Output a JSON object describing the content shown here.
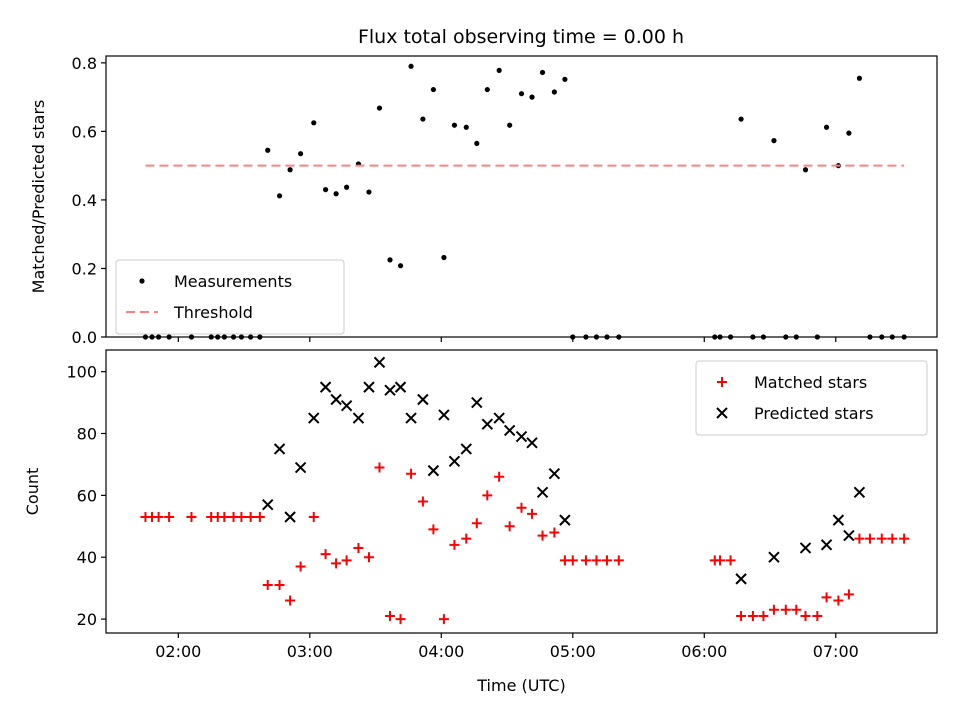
{
  "title": "Flux total observing time = 0.00 h",
  "chart_data": [
    {
      "type": "scatter",
      "panel": "top",
      "ylabel": "Matched/Predicted stars",
      "ylim": [
        0,
        0.82
      ],
      "yticks": [
        0.0,
        0.2,
        0.4,
        0.6,
        0.8
      ],
      "ytick_labels": [
        "0.0",
        "0.2",
        "0.4",
        "0.6",
        "0.8"
      ],
      "xlim": [
        1.45,
        7.77
      ],
      "xticks": [
        2,
        3,
        4,
        5,
        6,
        7
      ],
      "grid": false,
      "legend": {
        "position": "bottom-left",
        "entries": [
          "Measurements",
          "Threshold"
        ]
      },
      "series": [
        {
          "name": "Measurements",
          "marker": "dot",
          "color": "#000000",
          "x": [
            1.75,
            1.8,
            1.85,
            1.93,
            2.1,
            2.25,
            2.3,
            2.35,
            2.42,
            2.48,
            2.55,
            2.62,
            2.68,
            2.77,
            2.85,
            2.93,
            3.03,
            3.12,
            3.2,
            3.28,
            3.37,
            3.45,
            3.53,
            3.61,
            3.69,
            3.77,
            3.86,
            3.94,
            4.02,
            4.1,
            4.19,
            4.27,
            4.35,
            4.44,
            4.52,
            4.61,
            4.69,
            4.77,
            4.86,
            4.94,
            5.0,
            5.1,
            5.18,
            5.26,
            5.35,
            6.08,
            6.12,
            6.2,
            6.28,
            6.37,
            6.45,
            6.53,
            6.62,
            6.7,
            6.77,
            6.86,
            6.93,
            7.02,
            7.1,
            7.18,
            7.26,
            7.35,
            7.43,
            7.52
          ],
          "y": [
            0,
            0,
            0,
            0,
            0,
            0,
            0,
            0,
            0,
            0,
            0,
            0,
            0.545,
            0.412,
            0.488,
            0.535,
            0.625,
            0.43,
            0.418,
            0.437,
            0.505,
            0.423,
            0.668,
            0.225,
            0.208,
            0.79,
            0.636,
            0.722,
            0.232,
            0.618,
            0.612,
            0.565,
            0.722,
            0.778,
            0.618,
            0.71,
            0.7,
            0.772,
            0.715,
            0.752,
            0,
            0,
            0,
            0,
            0,
            0,
            0,
            0,
            0.636,
            0,
            0,
            0.573,
            0,
            0,
            0.488,
            0,
            0.612,
            0.5,
            0.595,
            0.755,
            0,
            0,
            0,
            0
          ]
        },
        {
          "name": "Threshold",
          "line": "dashed",
          "color": "#ff8080",
          "x": [
            1.75,
            7.52
          ],
          "y": [
            0.5,
            0.5
          ]
        }
      ]
    },
    {
      "type": "scatter",
      "panel": "bottom",
      "xlabel": "Time (UTC)",
      "ylabel": "Count",
      "ylim": [
        15.5,
        107
      ],
      "yticks": [
        20,
        40,
        60,
        80,
        100
      ],
      "ytick_labels": [
        "20",
        "40",
        "60",
        "80",
        "100"
      ],
      "xlim": [
        1.45,
        7.77
      ],
      "xticks": [
        2,
        3,
        4,
        5,
        6,
        7
      ],
      "xtick_labels": [
        "02:00",
        "03:00",
        "04:00",
        "05:00",
        "06:00",
        "07:00"
      ],
      "grid": false,
      "legend": {
        "position": "top-right",
        "entries": [
          "Matched stars",
          "Predicted stars"
        ]
      },
      "series": [
        {
          "name": "Matched stars",
          "marker": "plus",
          "color": "#ff0000",
          "x": [
            1.75,
            1.8,
            1.85,
            1.93,
            2.1,
            2.25,
            2.3,
            2.35,
            2.42,
            2.48,
            2.55,
            2.62,
            2.68,
            2.77,
            2.85,
            2.93,
            3.03,
            3.12,
            3.2,
            3.28,
            3.37,
            3.45,
            3.53,
            3.61,
            3.69,
            3.77,
            3.86,
            3.94,
            4.02,
            4.1,
            4.19,
            4.27,
            4.35,
            4.44,
            4.52,
            4.61,
            4.69,
            4.77,
            4.86,
            4.94,
            5.0,
            5.1,
            5.18,
            5.26,
            5.35,
            6.08,
            6.12,
            6.2,
            6.28,
            6.37,
            6.45,
            6.53,
            6.62,
            6.7,
            6.77,
            6.86,
            6.93,
            7.02,
            7.1,
            7.18,
            7.26,
            7.35,
            7.43,
            7.52
          ],
          "y": [
            53,
            53,
            53,
            53,
            53,
            53,
            53,
            53,
            53,
            53,
            53,
            53,
            31,
            31,
            26,
            37,
            53,
            41,
            38,
            39,
            43,
            40,
            69,
            21,
            20,
            67,
            58,
            49,
            20,
            44,
            46,
            51,
            60,
            66,
            50,
            56,
            54,
            47,
            48,
            39,
            39,
            39,
            39,
            39,
            39,
            39,
            39,
            39,
            21,
            21,
            21,
            23,
            23,
            23,
            21,
            21,
            27,
            26,
            28,
            46,
            46,
            46,
            46,
            46
          ]
        },
        {
          "name": "Predicted stars",
          "marker": "x",
          "color": "#000000",
          "x": [
            2.68,
            2.77,
            2.85,
            2.93,
            3.03,
            3.12,
            3.2,
            3.28,
            3.37,
            3.45,
            3.53,
            3.61,
            3.69,
            3.77,
            3.86,
            3.94,
            4.02,
            4.1,
            4.19,
            4.27,
            4.35,
            4.44,
            4.52,
            4.61,
            4.69,
            4.77,
            4.86,
            4.94,
            6.28,
            6.53,
            6.77,
            6.93,
            7.02,
            7.1,
            7.18
          ],
          "y": [
            57,
            75,
            53,
            69,
            85,
            95,
            91,
            89,
            85,
            95,
            103,
            94,
            95,
            85,
            91,
            68,
            86,
            71,
            75,
            90,
            83,
            85,
            81,
            79,
            77,
            61,
            67,
            52,
            33,
            40,
            43,
            44,
            52,
            47,
            61
          ]
        }
      ]
    }
  ]
}
